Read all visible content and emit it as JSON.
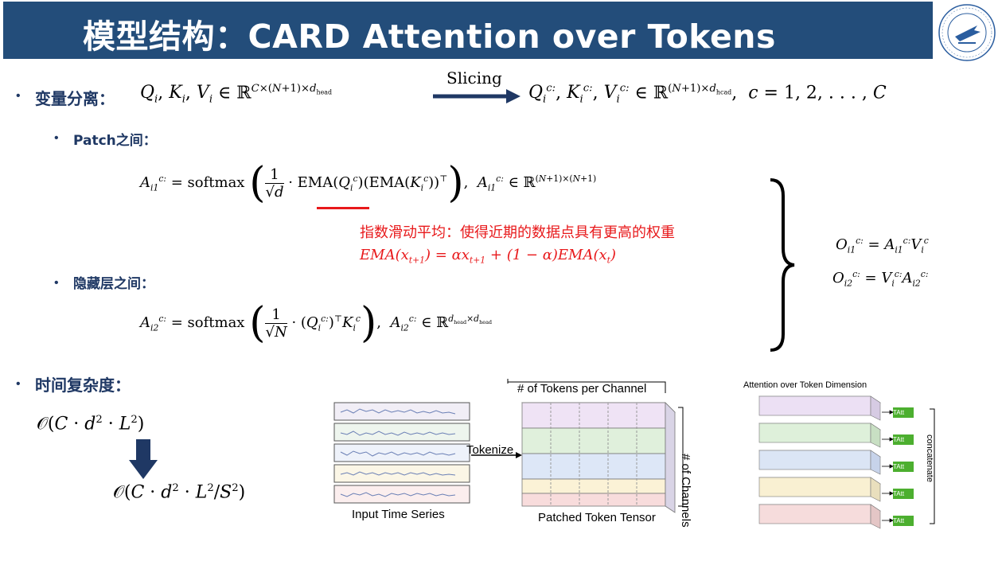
{
  "header": {
    "title": "模型结构：CARD Attention over Tokens"
  },
  "section1": {
    "bullet": "•",
    "label": "变量分离：",
    "formula_left": "Q_i, K_i, V_i ∈ ℝ^{C×(N+1)×d_head}",
    "arrow_label": "Slicing",
    "formula_right": "Q_i^{c:}, K_i^{c:}, V_i^{c:} ∈ ℝ^{(N+1)×d_head}, c = 1, 2, ..., C"
  },
  "patch": {
    "bullet": "•",
    "label": "Patch之间："
  },
  "ema": {
    "note": "指数滑动平均：使得近期的数据点具有更高的权重",
    "formula": "EMA(x_{t+1}) = αx_{t+1} + (1 − α)EMA(x_t)"
  },
  "hidden": {
    "bullet": "•",
    "label": "隐藏层之间："
  },
  "outputs": {
    "o1": "O_{i1}^{c:} = A_{i1}^{c:} V_i^c",
    "o2": "O_{i2}^{c:} = V_i^{c:} A_{i2}^{c:}"
  },
  "complexity": {
    "bullet": "•",
    "label": "时间复杂度：",
    "before": "O(C · d² · L²)",
    "after": "O(C · d² · L²/S²)"
  },
  "figure1": {
    "caption_input": "Input Time Series",
    "tokenize": "Tokenize",
    "tokens_per_channel": "# of Tokens per Channel",
    "channels": "# of Channels",
    "caption_tensor": "Patched Token Tensor"
  },
  "figure2": {
    "title": "Attention over Token Dimension",
    "tatt": "TAtt",
    "concatenate": "concatenate"
  },
  "colors": {
    "header_bg": "#234d7a",
    "heading_text": "#1f3864",
    "highlight_red": "#e8191b"
  }
}
